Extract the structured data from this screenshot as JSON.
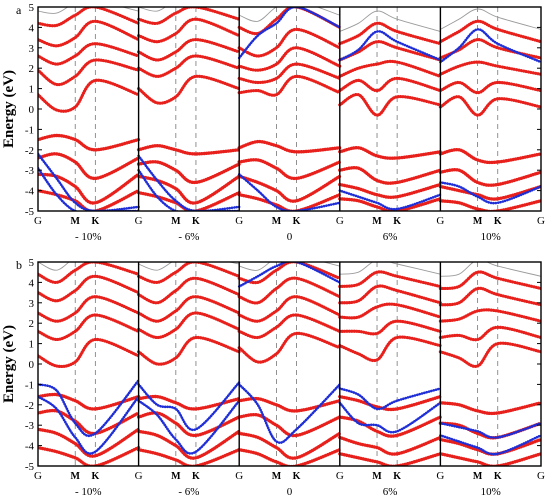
{
  "chart_data": [
    {
      "type": "line",
      "panel_label": "a",
      "ylabel": "Energy (eV)",
      "ylim": [
        -5,
        5
      ],
      "y_ticks": [
        "-5",
        "-4",
        "-3",
        "-2",
        "-1",
        "0",
        "1",
        "2",
        "3",
        "4",
        "5"
      ],
      "k_path": [
        "G",
        "M",
        "K",
        "G"
      ],
      "strains": [
        "- 10%",
        "- 6%",
        "0",
        "6%",
        "10%"
      ],
      "series_colors": [
        "#e8201c",
        "#1f2fd6",
        "#9b9b9b"
      ],
      "subplots": [
        {
          "strain": "- 10%",
          "gap_range": [
            -1.4,
            -0.1
          ],
          "cond": [
            [
              0.7,
              -0.05,
              0.1,
              1.4,
              0.7
            ],
            [
              1.9,
              1.2,
              1.6,
              2.4,
              1.9
            ],
            [
              2.6,
              2.2,
              2.6,
              3.2,
              2.6
            ],
            [
              3.4,
              3.1,
              3.5,
              4.3,
              3.4
            ],
            [
              4.2,
              4.1,
              4.6,
              5.0,
              4.2
            ]
          ],
          "val": [
            [
              -1.5,
              -1.3,
              -1.5,
              -2.0,
              -1.5
            ],
            [
              -2.4,
              -2.2,
              -2.6,
              -3.4,
              -2.4
            ],
            [
              -3.2,
              -3.3,
              -3.8,
              -4.6,
              -3.2
            ],
            [
              -4.0,
              -4.2,
              -4.5,
              -5.0,
              -4.0
            ]
          ],
          "blue": [
            [
              -2.2,
              -3.4,
              -4.6,
              -5.0,
              -4.8
            ],
            [
              -2.9,
              -4.2,
              -5.0,
              -5.0,
              -5.0
            ]
          ]
        },
        {
          "strain": "- 6%",
          "gap_range": [
            -1.9,
            0.3
          ],
          "cond": [
            [
              1.0,
              0.3,
              0.6,
              1.6,
              1.0
            ],
            [
              2.0,
              1.6,
              2.0,
              2.6,
              2.0
            ],
            [
              2.8,
              2.4,
              2.8,
              3.4,
              2.8
            ],
            [
              3.6,
              3.3,
              3.7,
              4.4,
              3.6
            ],
            [
              4.4,
              4.2,
              4.7,
              5.0,
              4.4
            ]
          ],
          "val": [
            [
              -2.0,
              -1.8,
              -2.0,
              -2.2,
              -2.0
            ],
            [
              -2.7,
              -2.6,
              -3.0,
              -3.6,
              -2.7
            ],
            [
              -3.3,
              -3.5,
              -3.9,
              -4.6,
              -3.3
            ],
            [
              -4.1,
              -4.3,
              -4.6,
              -5.0,
              -4.1
            ]
          ],
          "blue": [
            [
              -2.3,
              -3.5,
              -4.5,
              -5.0,
              -4.8
            ],
            [
              -3.0,
              -4.3,
              -5.0,
              -5.0,
              -5.0
            ]
          ]
        },
        {
          "strain": "0",
          "gap_range": [
            -1.8,
            0.6
          ],
          "cond": [
            [
              0.8,
              0.9,
              0.7,
              1.6,
              0.8
            ],
            [
              1.5,
              1.3,
              1.5,
              2.2,
              1.5
            ],
            [
              2.1,
              1.9,
              2.2,
              3.0,
              2.1
            ],
            [
              3.0,
              2.6,
              3.0,
              3.9,
              3.0
            ],
            [
              4.0,
              3.7,
              4.4,
              5.0,
              4.0
            ]
          ],
          "val": [
            [
              -1.9,
              -1.6,
              -1.8,
              -2.1,
              -1.9
            ],
            [
              -2.6,
              -2.5,
              -2.9,
              -3.4,
              -2.6
            ],
            [
              -3.3,
              -3.6,
              -4.0,
              -4.5,
              -3.3
            ],
            [
              -4.2,
              -4.4,
              -4.7,
              -5.0,
              -4.2
            ]
          ],
          "blue": [
            [
              2.5,
              3.6,
              4.2,
              5.0,
              4.0
            ],
            [
              -3.2,
              -4.0,
              -4.8,
              -5.0,
              -4.6
            ]
          ]
        },
        {
          "strain": "6%",
          "gap_range": [
            -1.8,
            0.2
          ],
          "cond": [
            [
              0.2,
              0.7,
              -0.3,
              0.6,
              0.2
            ],
            [
              0.9,
              1.4,
              0.9,
              1.5,
              0.9
            ],
            [
              1.6,
              2.0,
              2.2,
              2.3,
              1.6
            ],
            [
              2.4,
              2.8,
              3.3,
              3.0,
              2.4
            ],
            [
              3.2,
              3.6,
              4.2,
              3.8,
              3.2
            ]
          ],
          "val": [
            [
              -2.1,
              -1.9,
              -2.3,
              -2.4,
              -2.1
            ],
            [
              -3.0,
              -2.9,
              -3.5,
              -3.6,
              -3.0
            ],
            [
              -3.7,
              -3.9,
              -4.2,
              -4.3,
              -3.7
            ],
            [
              -4.4,
              -4.5,
              -4.8,
              -5.0,
              -4.4
            ]
          ],
          "blue": [
            [
              -4.0,
              -4.3,
              -4.6,
              -4.9,
              -4.2
            ],
            [
              2.4,
              2.9,
              3.8,
              3.3,
              2.4
            ]
          ]
        },
        {
          "strain": "10%",
          "gap_range": [
            -1.8,
            -0.1
          ],
          "cond": [
            [
              0.1,
              0.6,
              -0.3,
              0.5,
              0.1
            ],
            [
              0.9,
              1.3,
              0.8,
              1.3,
              0.9
            ],
            [
              1.7,
              2.1,
              2.3,
              2.1,
              1.7
            ],
            [
              2.5,
              2.9,
              3.4,
              3.0,
              2.5
            ],
            [
              3.3,
              3.8,
              4.3,
              3.9,
              3.3
            ]
          ],
          "val": [
            [
              -2.2,
              -2.0,
              -2.5,
              -2.6,
              -2.2
            ],
            [
              -3.1,
              -3.0,
              -3.6,
              -3.7,
              -3.1
            ],
            [
              -3.8,
              -4.0,
              -4.2,
              -4.4,
              -3.8
            ],
            [
              -4.5,
              -4.6,
              -4.9,
              -5.0,
              -4.5
            ]
          ],
          "blue": [
            [
              -3.6,
              -3.8,
              -4.3,
              -4.6,
              -3.8
            ],
            [
              2.3,
              3.0,
              3.9,
              3.2,
              2.3
            ]
          ]
        }
      ]
    },
    {
      "type": "line",
      "panel_label": "b",
      "ylabel": "Energy (eV)",
      "ylim": [
        -5,
        5
      ],
      "y_ticks": [
        "-5",
        "-4",
        "-3",
        "-2",
        "-1",
        "0",
        "1",
        "2",
        "3",
        "4",
        "5"
      ],
      "k_path": [
        "G",
        "M",
        "K",
        "G"
      ],
      "strains": [
        "- 10%",
        "- 6%",
        "0",
        "6%",
        "10%"
      ],
      "series_colors": [
        "#e8201c",
        "#1f2fd6",
        "#9b9b9b"
      ],
      "subplots": [
        {
          "strain": "- 10%",
          "cond": [
            [
              0.4,
              -0.1,
              0.1,
              1.2,
              0.4
            ],
            [
              1.6,
              1.2,
              1.6,
              2.4,
              1.6
            ],
            [
              2.5,
              2.1,
              2.5,
              3.3,
              2.5
            ],
            [
              3.5,
              3.1,
              3.6,
              4.3,
              3.5
            ],
            [
              4.4,
              4.0,
              4.6,
              5.0,
              4.4
            ]
          ],
          "val": [
            [
              -1.6,
              -1.5,
              -1.8,
              -2.2,
              -1.6
            ],
            [
              -2.4,
              -2.3,
              -2.8,
              -3.4,
              -2.4
            ],
            [
              -3.2,
              -3.4,
              -3.9,
              -4.5,
              -3.2
            ],
            [
              -4.1,
              -4.3,
              -4.6,
              -5.0,
              -4.1
            ]
          ],
          "blue": [
            [
              -1.0,
              -1.3,
              -2.9,
              -3.4,
              -0.8
            ],
            [
              -1.6,
              -2.2,
              -3.6,
              -4.3,
              -1.6
            ]
          ]
        },
        {
          "strain": "- 6%",
          "cond": [
            [
              0.6,
              0.0,
              0.3,
              1.3,
              0.6
            ],
            [
              1.7,
              1.3,
              1.7,
              2.5,
              1.7
            ],
            [
              2.5,
              2.1,
              2.6,
              3.3,
              2.5
            ],
            [
              3.4,
              3.0,
              3.6,
              4.2,
              3.4
            ],
            [
              4.3,
              4.0,
              4.5,
              5.0,
              4.3
            ]
          ],
          "val": [
            [
              -1.7,
              -1.6,
              -1.9,
              -2.2,
              -1.7
            ],
            [
              -2.6,
              -2.4,
              -2.9,
              -3.5,
              -2.6
            ],
            [
              -3.3,
              -3.5,
              -4.0,
              -4.6,
              -3.3
            ],
            [
              -4.2,
              -4.4,
              -4.7,
              -5.0,
              -4.2
            ]
          ],
          "blue": [
            [
              -1.0,
              -2.0,
              -2.2,
              -3.2,
              -0.9
            ],
            [
              -1.8,
              -2.5,
              -3.7,
              -4.3,
              -1.8
            ]
          ]
        },
        {
          "strain": "0",
          "cond": [
            [
              0.8,
              0.1,
              0.5,
              1.5,
              0.8
            ],
            [
              1.6,
              1.3,
              1.8,
              2.4,
              1.6
            ],
            [
              2.4,
              2.1,
              2.6,
              3.3,
              2.4
            ],
            [
              3.3,
              3.0,
              3.7,
              4.2,
              3.3
            ],
            [
              4.2,
              4.0,
              4.6,
              5.0,
              4.2
            ]
          ],
          "val": [
            [
              -1.8,
              -1.7,
              -2.0,
              -2.3,
              -1.8
            ],
            [
              -2.6,
              -2.5,
              -3.0,
              -3.5,
              -2.6
            ],
            [
              -3.4,
              -3.6,
              -4.1,
              -4.6,
              -3.4
            ],
            [
              -4.2,
              -4.4,
              -4.8,
              -5.0,
              -4.2
            ]
          ],
          "blue": [
            [
              -1.0,
              -2.0,
              -3.8,
              -3.2,
              -1.0
            ],
            [
              3.8,
              4.3,
              4.8,
              5.0,
              4.0
            ]
          ]
        },
        {
          "strain": "6%",
          "cond": [
            [
              0.9,
              0.5,
              0.2,
              1.3,
              0.9
            ],
            [
              1.6,
              1.6,
              1.5,
              2.1,
              1.6
            ],
            [
              2.3,
              2.3,
              2.8,
              2.9,
              2.3
            ],
            [
              3.0,
              3.1,
              3.8,
              3.6,
              3.0
            ],
            [
              3.8,
              3.9,
              4.5,
              4.3,
              3.8
            ]
          ],
          "val": [
            [
              -1.6,
              -1.8,
              -2.1,
              -2.2,
              -1.6
            ],
            [
              -2.6,
              -2.8,
              -3.3,
              -3.5,
              -2.6
            ],
            [
              -3.6,
              -3.9,
              -4.1,
              -4.4,
              -3.6
            ],
            [
              -4.4,
              -4.6,
              -4.8,
              -5.0,
              -4.4
            ]
          ],
          "blue": [
            [
              -1.2,
              -1.5,
              -2.2,
              -1.8,
              -1.2
            ],
            [
              -1.9,
              -2.9,
              -3.0,
              -3.3,
              -1.9
            ]
          ]
        },
        {
          "strain": "10%",
          "cond": [
            [
              0.6,
              0.3,
              -0.1,
              1.0,
              0.6
            ],
            [
              1.3,
              1.4,
              1.2,
              1.8,
              1.3
            ],
            [
              2.1,
              2.2,
              2.6,
              2.6,
              2.1
            ],
            [
              2.9,
              3.0,
              3.7,
              3.4,
              2.9
            ],
            [
              3.7,
              3.8,
              4.5,
              4.2,
              3.7
            ]
          ],
          "val": [
            [
              -1.9,
              -2.0,
              -2.3,
              -2.4,
              -1.9
            ],
            [
              -2.9,
              -3.0,
              -3.4,
              -3.6,
              -2.9
            ],
            [
              -3.7,
              -3.9,
              -4.2,
              -4.4,
              -3.7
            ],
            [
              -4.4,
              -4.6,
              -4.8,
              -5.0,
              -4.4
            ]
          ],
          "blue": [
            [
              -2.9,
              -3.1,
              -3.3,
              -3.6,
              -2.9
            ],
            [
              -3.5,
              -3.8,
              -4.1,
              -4.4,
              -3.5
            ]
          ]
        }
      ]
    }
  ]
}
